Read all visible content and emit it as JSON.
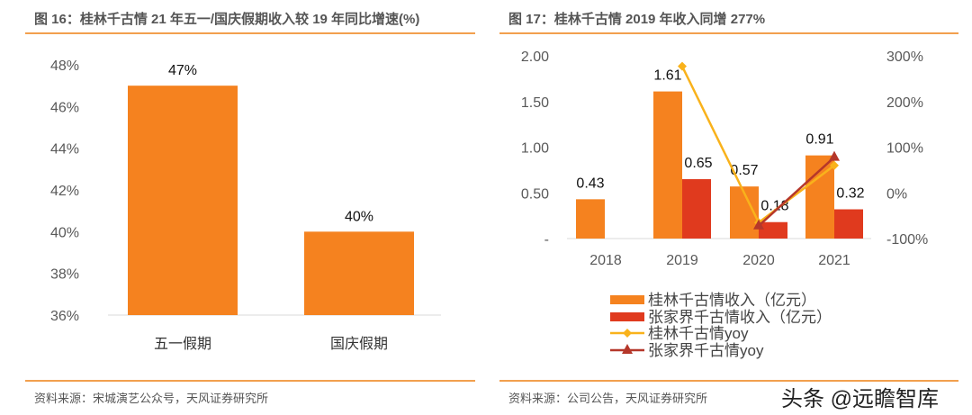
{
  "left": {
    "title": "图 16：桂林千古情 21 年五一/国庆假期收入较 19 年同比增速(%)",
    "source": "资料来源：宋城演艺公众号，天风证券研究所"
  },
  "right": {
    "title": "图 17：桂林千古情 2019 年收入同增 277%",
    "source": "资料来源：公司公告，天风证券研究所"
  },
  "watermark": "头条 @远瞻智库",
  "colors": {
    "orange": "#F5821F",
    "red": "#E03A1E",
    "yellow": "#F9B21B",
    "darkred": "#B5372A"
  },
  "chart_data": [
    {
      "type": "bar",
      "categories": [
        "五一假期",
        "国庆假期"
      ],
      "values": [
        47,
        40
      ],
      "data_labels": [
        "47%",
        "40%"
      ],
      "ylim": [
        36,
        48
      ],
      "yticks": [
        "36%",
        "38%",
        "40%",
        "42%",
        "44%",
        "46%",
        "48%"
      ],
      "grid": false
    },
    {
      "type": "bar+line",
      "categories": [
        "2018",
        "2019",
        "2020",
        "2021"
      ],
      "series": [
        {
          "name": "桂林千古情收入（亿元）",
          "type": "bar",
          "axis": "left",
          "values": [
            0.43,
            1.61,
            0.57,
            0.91
          ],
          "labels": [
            "0.43",
            "1.61",
            "0.57",
            "0.91"
          ]
        },
        {
          "name": "张家界千古情收入（亿元）",
          "type": "bar",
          "axis": "left",
          "values": [
            null,
            0.65,
            0.18,
            0.32
          ],
          "labels": [
            "",
            "0.65",
            "0.18",
            "0.32"
          ]
        },
        {
          "name": "桂林千古情yoy",
          "type": "line",
          "axis": "right",
          "marker": "diamond",
          "values": [
            null,
            277,
            -65,
            60
          ]
        },
        {
          "name": "张家界千古情yoy",
          "type": "line",
          "axis": "right",
          "marker": "triangle",
          "values": [
            null,
            null,
            -72,
            78
          ]
        }
      ],
      "ylim_left": [
        0,
        2.0
      ],
      "yticks_left": [
        "-",
        "0.50",
        "1.00",
        "1.50",
        "2.00"
      ],
      "ylim_right": [
        -100,
        300
      ],
      "yticks_right": [
        "-100%",
        "0%",
        "100%",
        "200%",
        "300%"
      ],
      "legend": "bottom",
      "grid": false
    }
  ]
}
